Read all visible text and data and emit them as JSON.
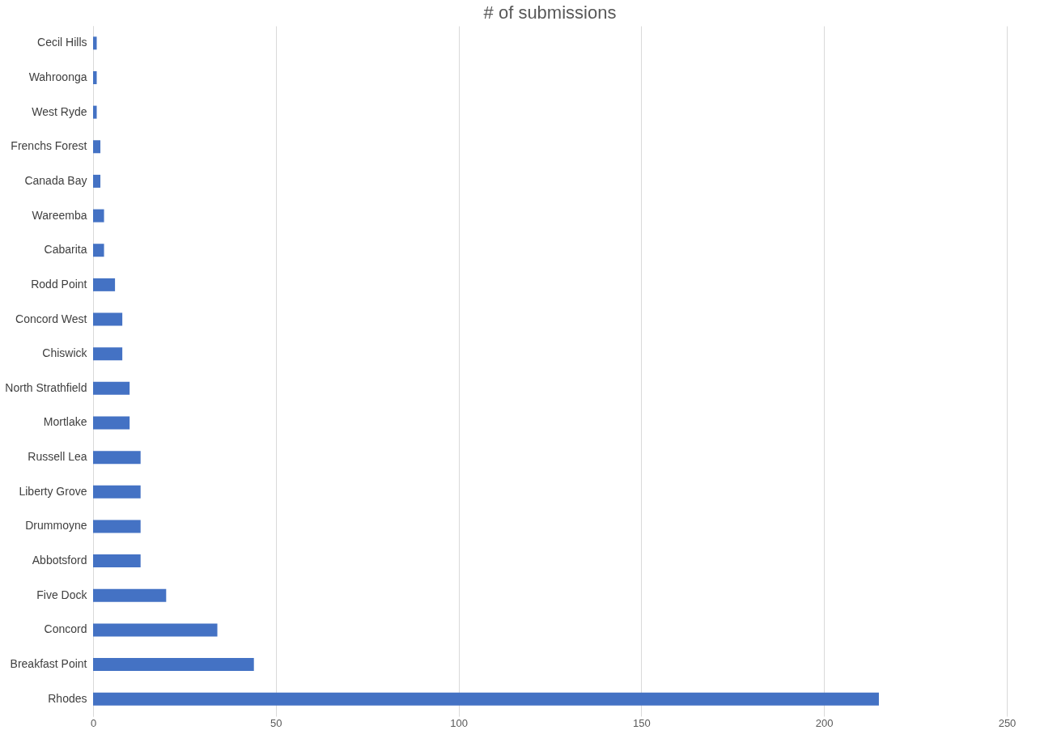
{
  "chart_data": {
    "type": "bar",
    "orientation": "horizontal",
    "title": "# of submissions",
    "categories": [
      "Cecil Hills",
      "Wahroonga",
      "West Ryde",
      "Frenchs Forest",
      "Canada Bay",
      "Wareemba",
      "Cabarita",
      "Rodd Point",
      "Concord West",
      "Chiswick",
      "North Strathfield",
      "Mortlake",
      "Russell Lea",
      "Liberty Grove",
      "Drummoyne",
      "Abbotsford",
      "Five Dock",
      "Concord",
      "Breakfast Point",
      "Rhodes"
    ],
    "values": [
      1,
      1,
      1,
      2,
      2,
      3,
      3,
      6,
      8,
      8,
      10,
      10,
      13,
      13,
      13,
      13,
      20,
      34,
      44,
      215
    ],
    "color": "#4472c4",
    "xlim": [
      0,
      250
    ],
    "xticks": [
      0,
      50,
      100,
      150,
      200,
      250
    ],
    "grid": "x"
  }
}
